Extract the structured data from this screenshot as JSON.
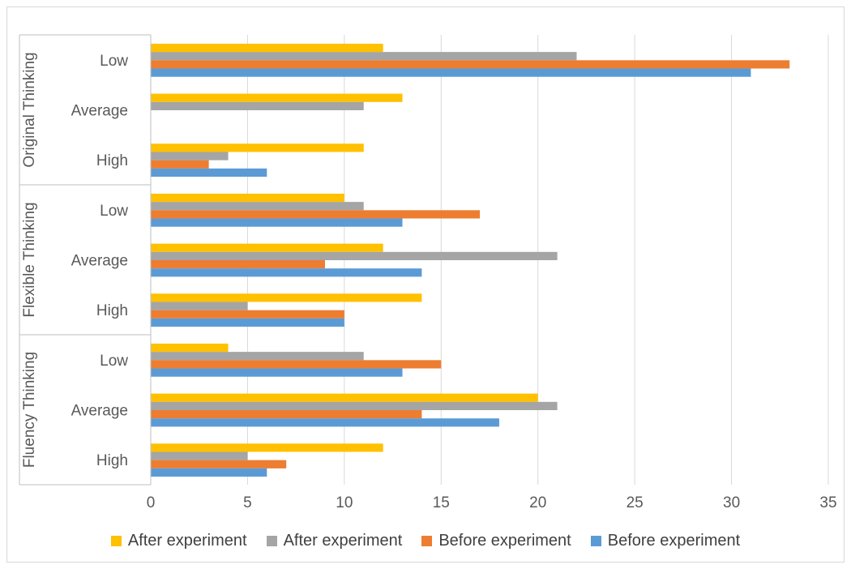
{
  "chart_data": {
    "type": "bar",
    "orientation": "horizontal",
    "title": "",
    "xlim": [
      0,
      35
    ],
    "x_ticks": [
      0,
      5,
      10,
      15,
      20,
      25,
      30,
      35
    ],
    "grid": "vertical",
    "legend_position": "bottom",
    "groups": [
      {
        "label": "Original Thinking",
        "categories": [
          "Low",
          "Average",
          "High"
        ]
      },
      {
        "label": "Flexible Thinking",
        "categories": [
          "Low",
          "Average",
          "High"
        ]
      },
      {
        "label": "Fluency Thinking",
        "categories": [
          "Low",
          "Average",
          "High"
        ]
      }
    ],
    "series": [
      {
        "name": "After experiment",
        "color": "#FFC000",
        "values": [
          12,
          13,
          11,
          10,
          12,
          14,
          4,
          20,
          12
        ]
      },
      {
        "name": "After experiment",
        "color": "#A5A5A5",
        "values": [
          22,
          11,
          4,
          11,
          21,
          5,
          11,
          21,
          5
        ]
      },
      {
        "name": "Before experiment",
        "color": "#ED7D31",
        "values": [
          33,
          0,
          3,
          17,
          9,
          10,
          15,
          14,
          7
        ]
      },
      {
        "name": "Before experiment",
        "color": "#5B9BD5",
        "values": [
          31,
          0,
          6,
          13,
          14,
          10,
          13,
          18,
          6
        ]
      }
    ]
  }
}
